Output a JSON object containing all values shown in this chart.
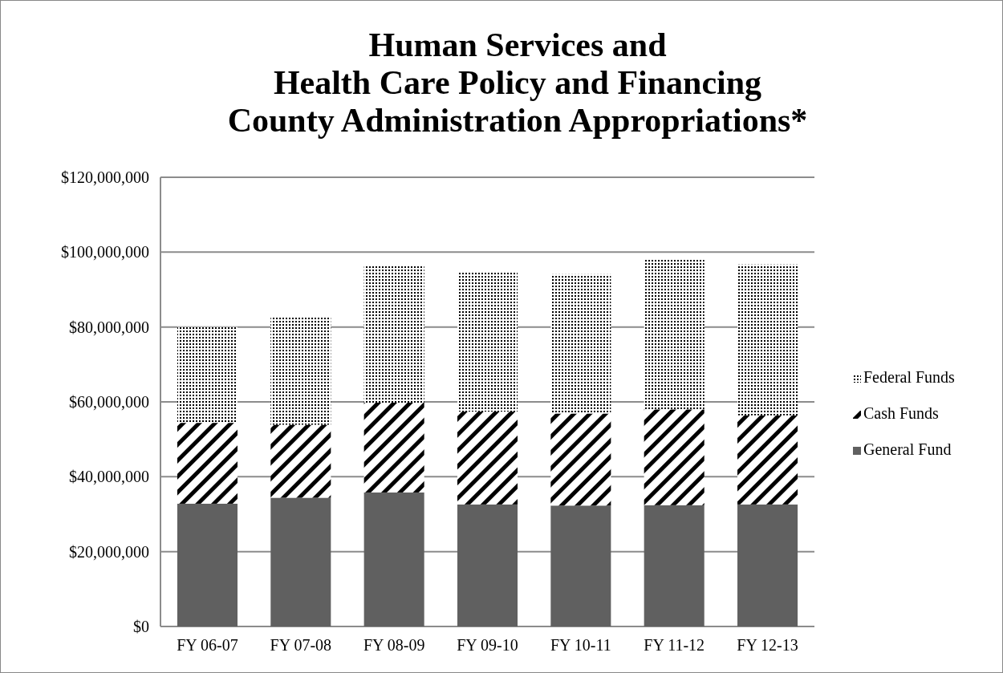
{
  "chart_data": {
    "type": "bar",
    "title": "Human Services and\nHealth Care Policy and Financing\nCounty Administration Appropriations*",
    "categories": [
      "FY 06-07",
      "FY 07-08",
      "FY 08-09",
      "FY 09-10",
      "FY 10-11",
      "FY 11-12",
      "FY 12-13"
    ],
    "stacked": true,
    "series": [
      {
        "name": "General Fund",
        "color": "#606060",
        "values": [
          32800000,
          34400000,
          35800000,
          32600000,
          32300000,
          32400000,
          32600000
        ]
      },
      {
        "name": "Cash Funds",
        "color": "#000000",
        "values": [
          21600000,
          19500000,
          24000000,
          24800000,
          24600000,
          25600000,
          23800000
        ]
      },
      {
        "name": "Federal Funds",
        "color": "#000000",
        "values": [
          25600000,
          28600000,
          36600000,
          37400000,
          37200000,
          40100000,
          40300000
        ]
      }
    ],
    "ylim": [
      0,
      120000000
    ],
    "yticks": [
      {
        "value": 0,
        "label": "$0"
      },
      {
        "value": 20000000,
        "label": "$20,000,000"
      },
      {
        "value": 40000000,
        "label": "$40,000,000"
      },
      {
        "value": 60000000,
        "label": "$60,000,000"
      },
      {
        "value": 80000000,
        "label": "$80,000,000"
      },
      {
        "value": 100000000,
        "label": "$100,000,000"
      },
      {
        "value": 120000000,
        "label": "$120,000,000"
      }
    ],
    "grid": "y",
    "legend": "right"
  }
}
